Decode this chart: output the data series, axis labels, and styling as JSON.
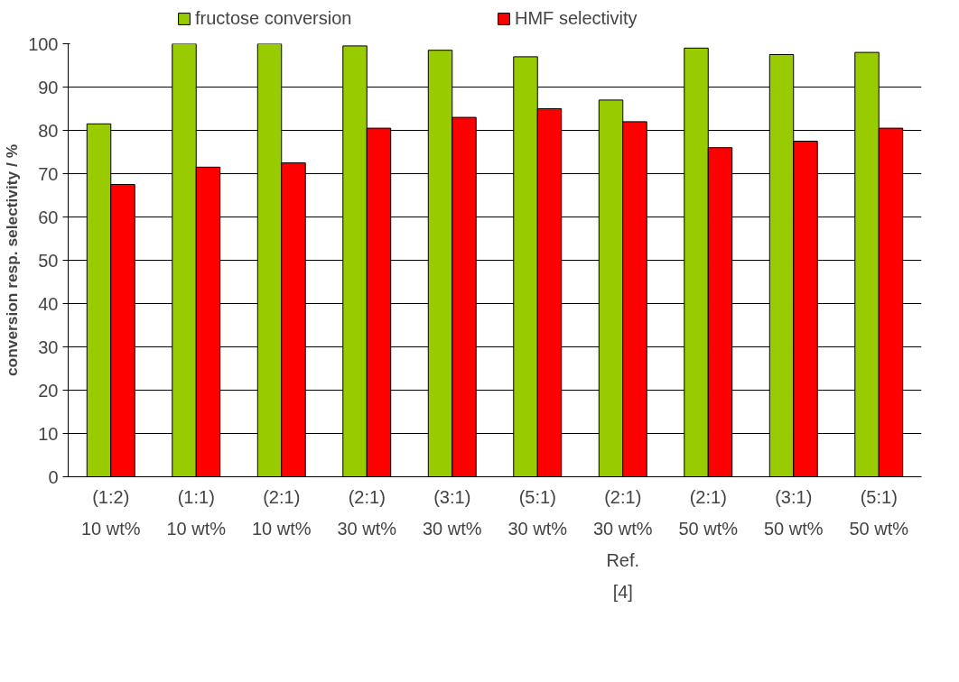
{
  "chart_data": {
    "type": "bar",
    "ylabel": "conversion resp. selectivity / %",
    "categories": [
      "(1:2)\n10 wt%",
      "(1:1)\n10 wt%",
      "(2:1)\n10 wt%",
      "(2:1)\n30 wt%",
      "(3:1)\n30 wt%",
      "(5:1)\n30 wt%",
      "(2:1)\n30 wt%\nRef.\n[4]",
      "(2:1)\n50 wt%",
      "(3:1)\n50 wt%",
      "(5:1)\n50 wt%"
    ],
    "series": [
      {
        "name": "fructose conversion",
        "color": "#99cc00",
        "values": [
          81.5,
          100,
          100,
          99.5,
          98.5,
          97,
          87,
          99,
          97.5,
          98
        ]
      },
      {
        "name": "HMF selectivity",
        "color": "#ff0000",
        "values": [
          67.5,
          71.5,
          72.5,
          80.5,
          83,
          85,
          82,
          76,
          77.5,
          80.5
        ]
      }
    ],
    "ylim": [
      0,
      100
    ],
    "yticks": [
      0,
      10,
      20,
      30,
      40,
      50,
      60,
      70,
      80,
      90,
      100
    ],
    "grid": "y",
    "legend": "top"
  }
}
